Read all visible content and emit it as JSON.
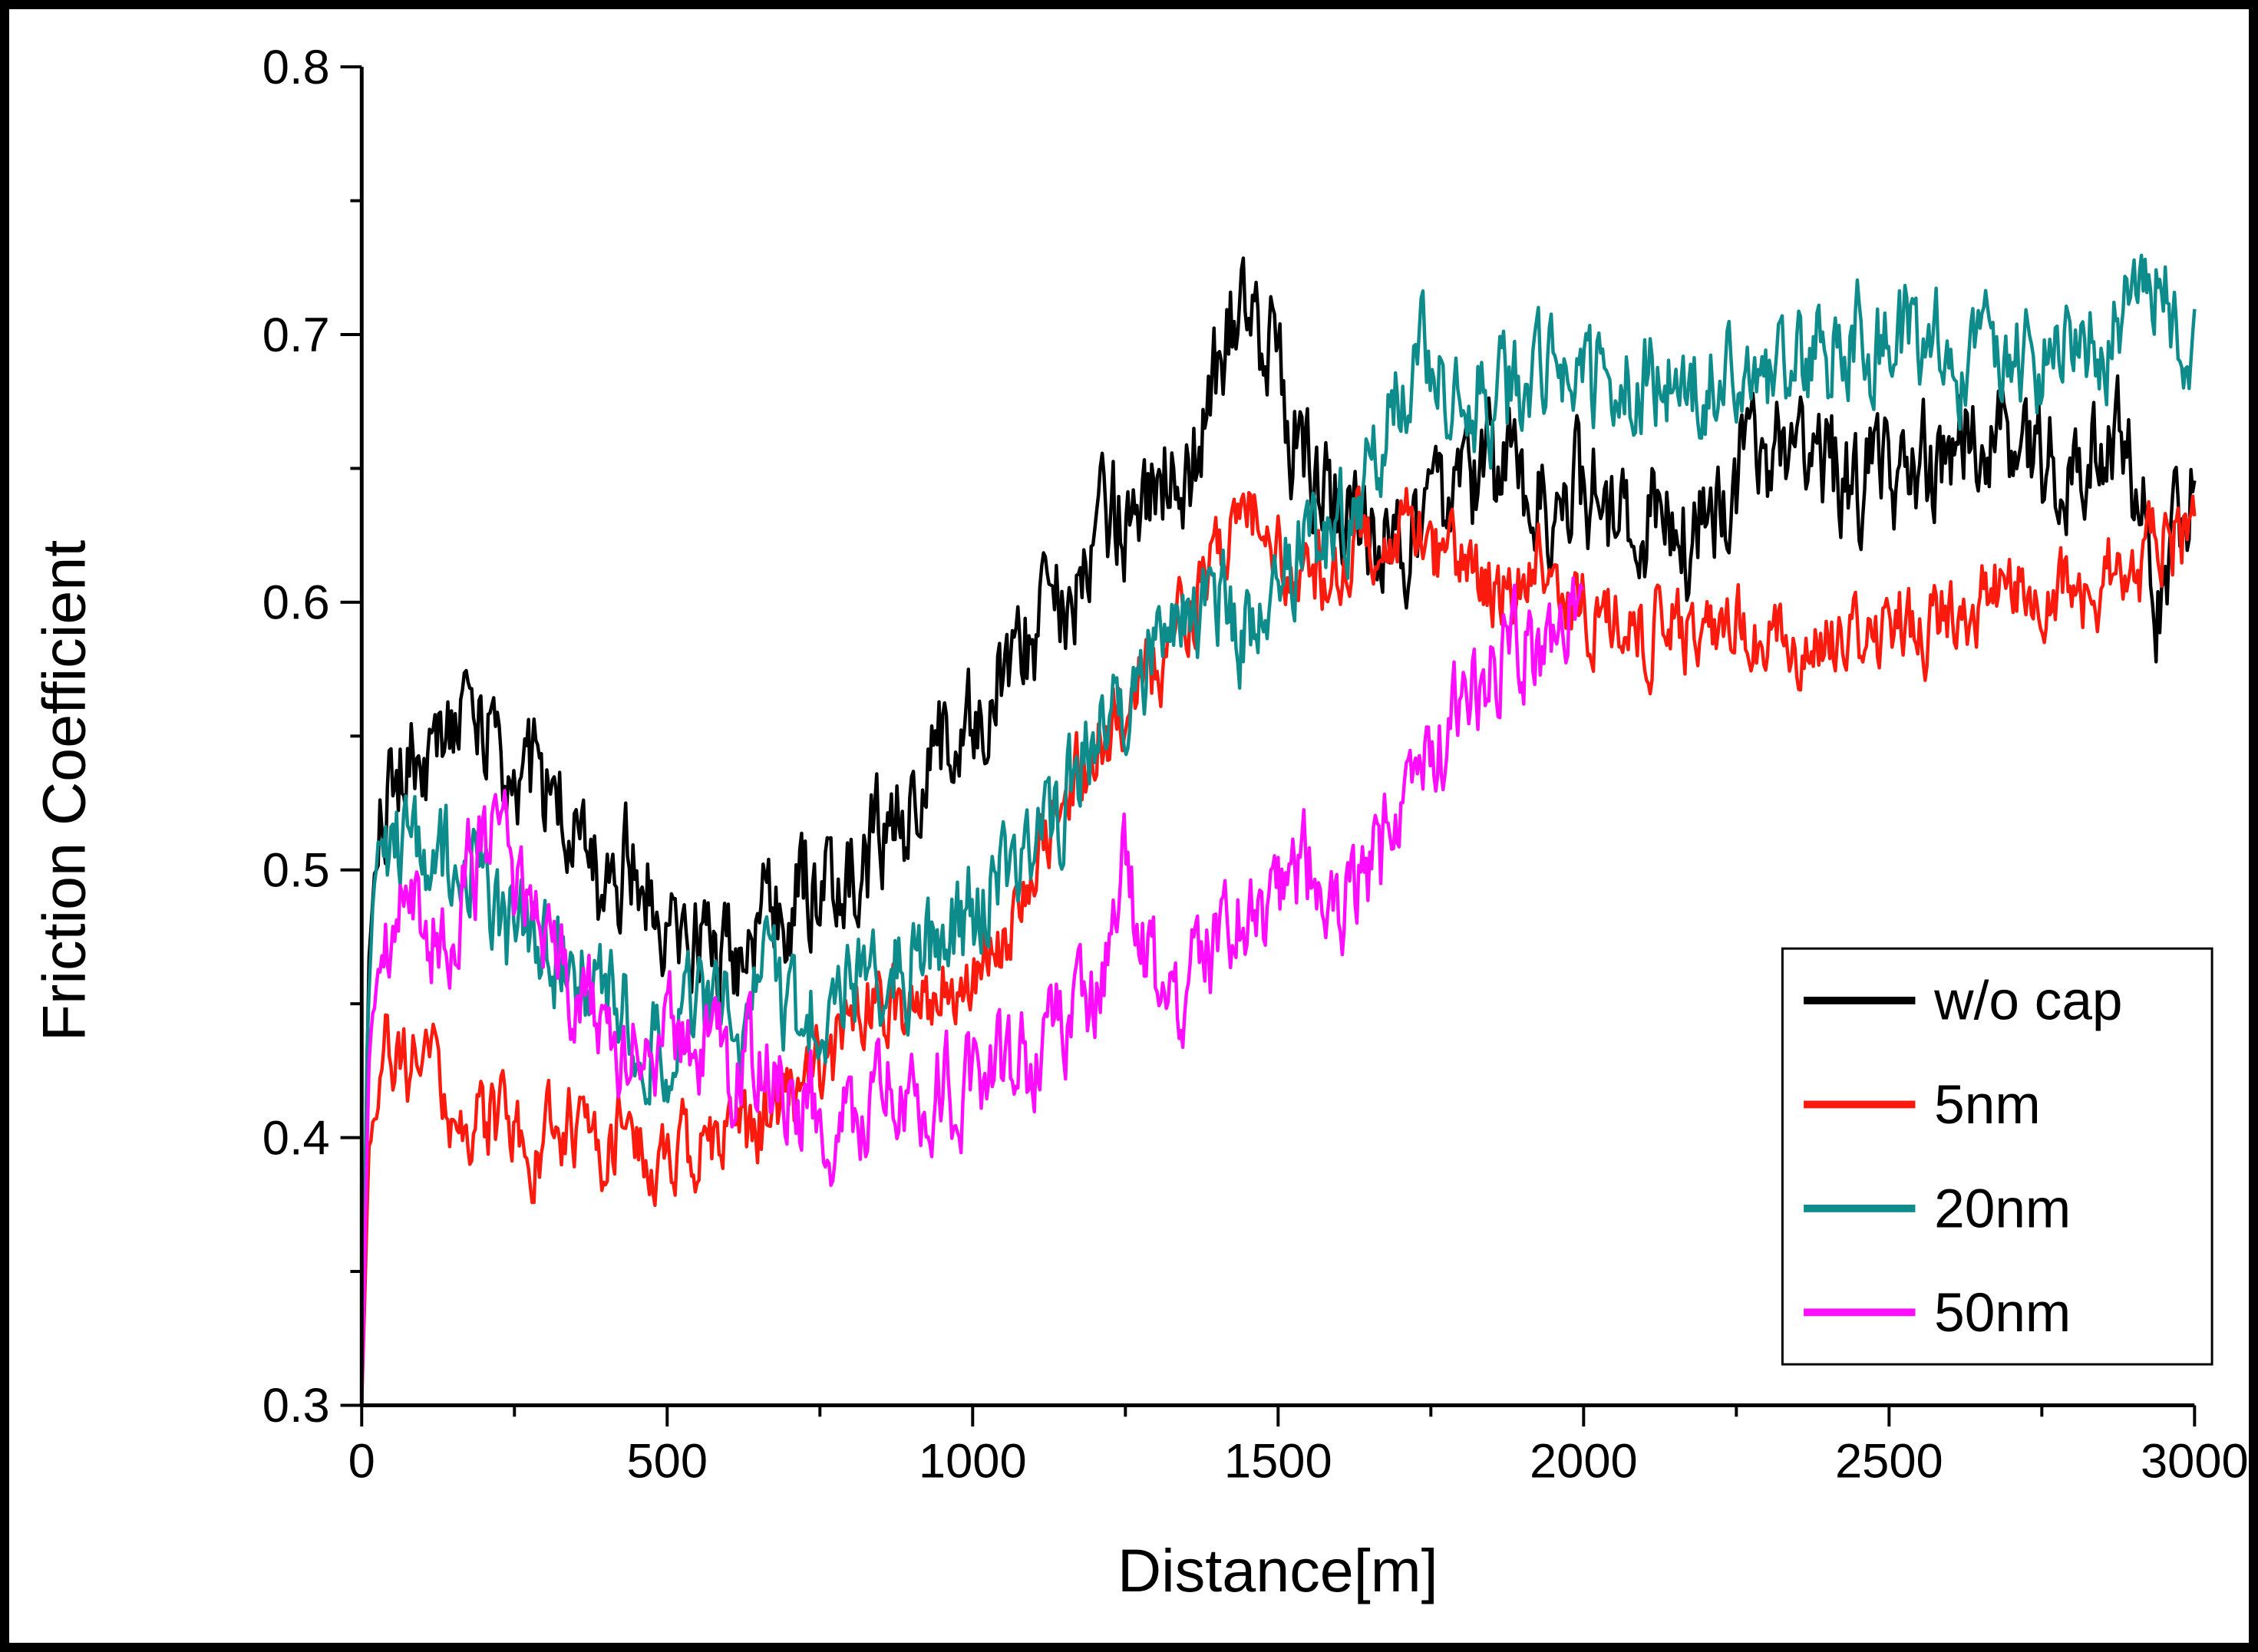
{
  "figure": {
    "border_color": "#000000",
    "background_color": "#ffffff"
  },
  "chart_data": {
    "type": "line",
    "title": "",
    "xlabel": "Distance[m]",
    "ylabel": "Friction Coefficient",
    "xlim": [
      0,
      3000
    ],
    "ylim": [
      0.3,
      0.8
    ],
    "x_ticks": [
      0,
      500,
      1000,
      1500,
      2000,
      2500,
      3000
    ],
    "y_ticks": [
      0.3,
      0.4,
      0.5,
      0.6,
      0.7,
      0.8
    ],
    "x_minor_step": 250,
    "y_minor_step": 0.05,
    "grid": false,
    "legend_position": "inside-right-lower",
    "legend_entries": [
      "w/o cap",
      "5nm",
      "20nm",
      "50nm"
    ],
    "series": [
      {
        "name": "w/o cap",
        "color": "#000000",
        "noise": 0.02,
        "seed": 101,
        "x_end": 3000,
        "anchors": [
          [
            0,
            0.3
          ],
          [
            12,
            0.47
          ],
          [
            30,
            0.53
          ],
          [
            80,
            0.545
          ],
          [
            140,
            0.55
          ],
          [
            170,
            0.575
          ],
          [
            200,
            0.545
          ],
          [
            260,
            0.535
          ],
          [
            320,
            0.52
          ],
          [
            400,
            0.5
          ],
          [
            480,
            0.49
          ],
          [
            560,
            0.48
          ],
          [
            640,
            0.49
          ],
          [
            720,
            0.505
          ],
          [
            800,
            0.515
          ],
          [
            880,
            0.525
          ],
          [
            960,
            0.545
          ],
          [
            1040,
            0.565
          ],
          [
            1120,
            0.585
          ],
          [
            1200,
            0.615
          ],
          [
            1280,
            0.635
          ],
          [
            1360,
            0.655
          ],
          [
            1430,
            0.705
          ],
          [
            1470,
            0.695
          ],
          [
            1520,
            0.66
          ],
          [
            1580,
            0.64
          ],
          [
            1650,
            0.63
          ],
          [
            1750,
            0.64
          ],
          [
            1850,
            0.645
          ],
          [
            1950,
            0.64
          ],
          [
            2050,
            0.64
          ],
          [
            2150,
            0.63
          ],
          [
            2250,
            0.645
          ],
          [
            2350,
            0.65
          ],
          [
            2450,
            0.64
          ],
          [
            2550,
            0.65
          ],
          [
            2650,
            0.66
          ],
          [
            2750,
            0.655
          ],
          [
            2880,
            0.655
          ],
          [
            2940,
            0.6
          ],
          [
            3000,
            0.655
          ]
        ]
      },
      {
        "name": "5nm",
        "color": "#fb1b0e",
        "noise": 0.014,
        "seed": 202,
        "x_end": 3000,
        "anchors": [
          [
            0,
            0.3
          ],
          [
            12,
            0.4
          ],
          [
            40,
            0.435
          ],
          [
            80,
            0.42
          ],
          [
            130,
            0.41
          ],
          [
            200,
            0.4
          ],
          [
            280,
            0.39
          ],
          [
            360,
            0.395
          ],
          [
            440,
            0.4
          ],
          [
            520,
            0.39
          ],
          [
            600,
            0.4
          ],
          [
            680,
            0.415
          ],
          [
            760,
            0.43
          ],
          [
            840,
            0.45
          ],
          [
            920,
            0.455
          ],
          [
            1000,
            0.465
          ],
          [
            1080,
            0.49
          ],
          [
            1160,
            0.53
          ],
          [
            1240,
            0.56
          ],
          [
            1320,
            0.58
          ],
          [
            1400,
            0.62
          ],
          [
            1450,
            0.635
          ],
          [
            1520,
            0.61
          ],
          [
            1600,
            0.62
          ],
          [
            1680,
            0.63
          ],
          [
            1760,
            0.615
          ],
          [
            1840,
            0.605
          ],
          [
            1920,
            0.61
          ],
          [
            2000,
            0.6
          ],
          [
            2100,
            0.59
          ],
          [
            2200,
            0.585
          ],
          [
            2300,
            0.59
          ],
          [
            2400,
            0.585
          ],
          [
            2500,
            0.595
          ],
          [
            2600,
            0.6
          ],
          [
            2700,
            0.61
          ],
          [
            2800,
            0.615
          ],
          [
            2900,
            0.625
          ],
          [
            3000,
            0.635
          ]
        ]
      },
      {
        "name": "20nm",
        "color": "#0e8b8b",
        "noise": 0.017,
        "seed": 303,
        "x_end": 3000,
        "anchors": [
          [
            0,
            0.3
          ],
          [
            10,
            0.45
          ],
          [
            25,
            0.515
          ],
          [
            70,
            0.5
          ],
          [
            120,
            0.49
          ],
          [
            180,
            0.5
          ],
          [
            240,
            0.465
          ],
          [
            300,
            0.455
          ],
          [
            360,
            0.455
          ],
          [
            420,
            0.44
          ],
          [
            480,
            0.435
          ],
          [
            540,
            0.445
          ],
          [
            600,
            0.44
          ],
          [
            660,
            0.45
          ],
          [
            720,
            0.44
          ],
          [
            780,
            0.45
          ],
          [
            840,
            0.46
          ],
          [
            900,
            0.465
          ],
          [
            960,
            0.475
          ],
          [
            1020,
            0.49
          ],
          [
            1080,
            0.505
          ],
          [
            1140,
            0.52
          ],
          [
            1200,
            0.55
          ],
          [
            1260,
            0.565
          ],
          [
            1320,
            0.575
          ],
          [
            1380,
            0.59
          ],
          [
            1440,
            0.575
          ],
          [
            1500,
            0.6
          ],
          [
            1560,
            0.615
          ],
          [
            1620,
            0.625
          ],
          [
            1680,
            0.665
          ],
          [
            1740,
            0.69
          ],
          [
            1800,
            0.675
          ],
          [
            1860,
            0.68
          ],
          [
            1920,
            0.69
          ],
          [
            1980,
            0.68
          ],
          [
            2050,
            0.68
          ],
          [
            2150,
            0.695
          ],
          [
            2250,
            0.685
          ],
          [
            2350,
            0.695
          ],
          [
            2450,
            0.7
          ],
          [
            2550,
            0.69
          ],
          [
            2650,
            0.7
          ],
          [
            2750,
            0.695
          ],
          [
            2850,
            0.7
          ],
          [
            2930,
            0.725
          ],
          [
            3000,
            0.695
          ]
        ]
      },
      {
        "name": "50nm",
        "color": "#ff0dff",
        "noise": 0.017,
        "seed": 404,
        "x_end": 2000,
        "anchors": [
          [
            0,
            0.3
          ],
          [
            12,
            0.43
          ],
          [
            35,
            0.47
          ],
          [
            80,
            0.48
          ],
          [
            130,
            0.475
          ],
          [
            180,
            0.495
          ],
          [
            220,
            0.515
          ],
          [
            260,
            0.475
          ],
          [
            310,
            0.455
          ],
          [
            360,
            0.45
          ],
          [
            420,
            0.435
          ],
          [
            480,
            0.42
          ],
          [
            540,
            0.43
          ],
          [
            600,
            0.42
          ],
          [
            660,
            0.415
          ],
          [
            720,
            0.41
          ],
          [
            780,
            0.4
          ],
          [
            840,
            0.415
          ],
          [
            900,
            0.42
          ],
          [
            960,
            0.42
          ],
          [
            1020,
            0.43
          ],
          [
            1080,
            0.43
          ],
          [
            1140,
            0.44
          ],
          [
            1200,
            0.455
          ],
          [
            1250,
            0.495
          ],
          [
            1300,
            0.46
          ],
          [
            1360,
            0.465
          ],
          [
            1420,
            0.475
          ],
          [
            1480,
            0.47
          ],
          [
            1540,
            0.495
          ],
          [
            1600,
            0.49
          ],
          [
            1660,
            0.505
          ],
          [
            1720,
            0.53
          ],
          [
            1780,
            0.55
          ],
          [
            1840,
            0.575
          ],
          [
            1900,
            0.595
          ],
          [
            1950,
            0.6
          ],
          [
            2000,
            0.615
          ]
        ]
      }
    ]
  }
}
